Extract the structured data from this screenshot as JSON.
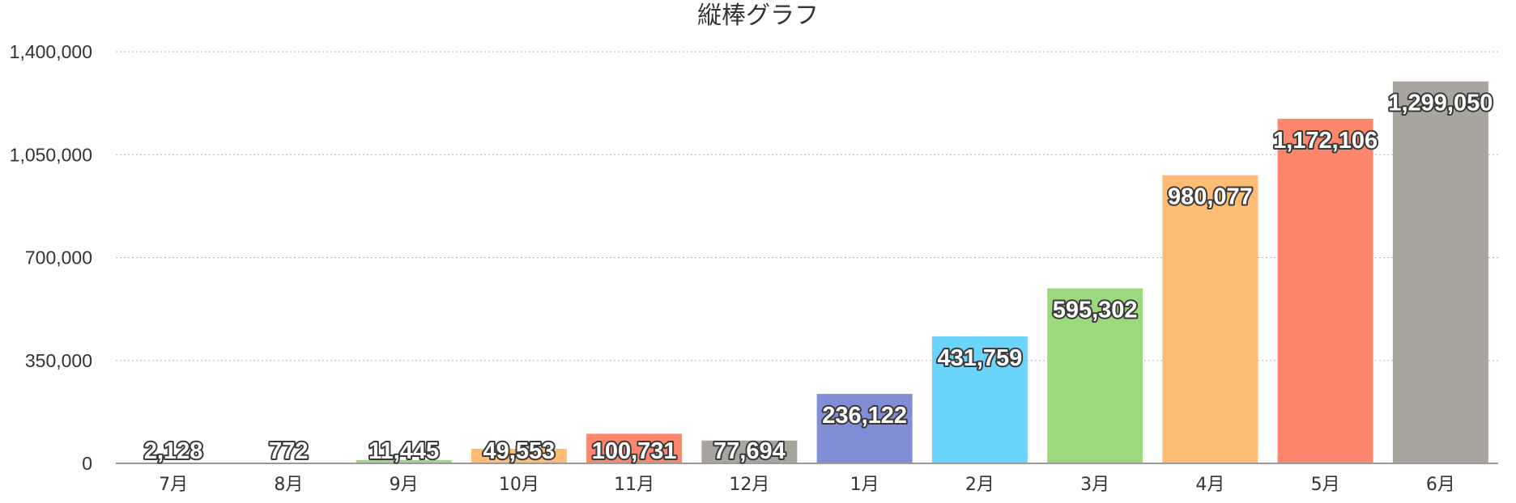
{
  "chart_data": {
    "type": "bar",
    "title": "縦棒グラフ",
    "xlabel": "",
    "ylabel": "",
    "categories": [
      "7月",
      "8月",
      "9月",
      "10月",
      "11月",
      "12月",
      "1月",
      "2月",
      "3月",
      "4月",
      "5月",
      "6月"
    ],
    "values": [
      2128,
      772,
      11445,
      49553,
      100731,
      77694,
      236122,
      431759,
      595302,
      980077,
      1172106,
      1299050
    ],
    "data_labels": [
      "2,128",
      "772",
      "11,445",
      "49,553",
      "100,731",
      "77,694",
      "236,122",
      "431,759",
      "595,302",
      "980,077",
      "1,172,106",
      "1,299,050"
    ],
    "ylim": [
      0,
      1400000
    ],
    "y_ticks": [
      0,
      350000,
      700000,
      1050000,
      1400000
    ],
    "y_tick_labels": [
      "0",
      "350,000",
      "700,000",
      "1,050,000",
      "1,400,000"
    ],
    "grid": true,
    "legend": "none",
    "bar_colors": [
      "#7f8ed6",
      "#6bd4fc",
      "#9cd97c",
      "#fdbd72",
      "#fd876c",
      "#a8a59f",
      "#7f8ed6",
      "#6bd4fc",
      "#9cd97c",
      "#fdbd72",
      "#fd876c",
      "#a8a59f"
    ],
    "label_color": "#ffffff",
    "label_outline_color": "#3a3a3a"
  }
}
